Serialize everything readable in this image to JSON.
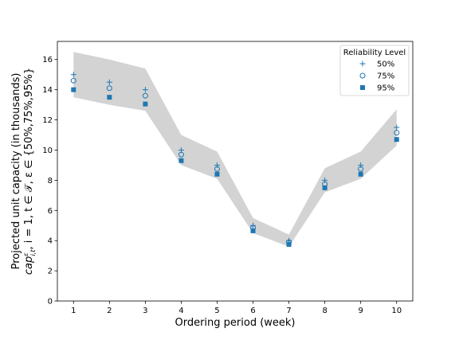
{
  "chart_data": {
    "type": "scatter",
    "x": [
      1,
      2,
      3,
      4,
      5,
      6,
      7,
      8,
      9,
      10
    ],
    "xlabel": "Ordering period (week)",
    "ylabel_line1": "Projected unit capacity (in thousands)",
    "ylabel_line2": "cap",
    "ylabel_sup": "ε",
    "ylabel_sub": "i,t",
    "ylabel_rest": ", i = 1,  t ∈ 𝒯, ε ∈ {50%,75%,95%}",
    "xlim": [
      0.55,
      10.45
    ],
    "ylim": [
      0,
      17.2
    ],
    "xticks": [
      1,
      2,
      3,
      4,
      5,
      6,
      7,
      8,
      9,
      10
    ],
    "yticks": [
      0,
      2,
      4,
      6,
      8,
      10,
      12,
      14,
      16
    ],
    "grid": false,
    "legend_title": "Reliability Level",
    "legend_position": "top-right",
    "marker_color": "#1f77b4",
    "band_color": "#d3d3d3",
    "band": {
      "upper": [
        16.5,
        16.0,
        15.4,
        11.0,
        9.9,
        5.5,
        4.4,
        8.8,
        9.9,
        12.7
      ],
      "lower": [
        13.5,
        13.0,
        12.6,
        9.0,
        8.1,
        4.5,
        3.6,
        7.2,
        8.1,
        10.3
      ]
    },
    "series": [
      {
        "name": "50%",
        "marker": "plus",
        "values": [
          15.0,
          14.5,
          14.0,
          10.0,
          9.0,
          5.0,
          4.0,
          8.0,
          9.0,
          11.5
        ]
      },
      {
        "name": "75%",
        "marker": "circle",
        "values": [
          14.6,
          14.1,
          13.6,
          9.7,
          8.75,
          4.85,
          3.9,
          7.75,
          8.75,
          11.15
        ]
      },
      {
        "name": "95%",
        "marker": "square",
        "values": [
          14.0,
          13.5,
          13.05,
          9.3,
          8.4,
          4.65,
          3.75,
          7.5,
          8.4,
          10.7
        ]
      }
    ]
  }
}
